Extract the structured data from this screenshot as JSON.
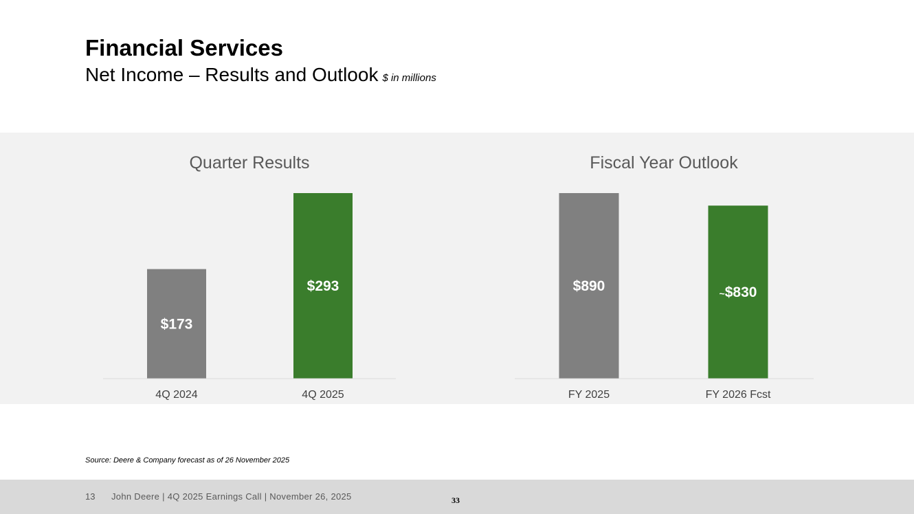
{
  "header": {
    "title": "Financial Services",
    "subtitle": "Net Income – Results and Outlook",
    "units": "$ in millions"
  },
  "colors": {
    "prior": "#808080",
    "current": "#3a7d2c",
    "panel": "#f2f2f2"
  },
  "chart_data": [
    {
      "type": "bar",
      "title": "Quarter Results",
      "categories": [
        "4Q 2024",
        "4Q 2025"
      ],
      "values": [
        173,
        293
      ],
      "labels": [
        {
          "prefix": "",
          "text": "$173"
        },
        {
          "prefix": "",
          "text": "$293"
        }
      ],
      "ylim": [
        0,
        293
      ],
      "xlabel": "",
      "ylabel": "",
      "grid": false
    },
    {
      "type": "bar",
      "title": "Fiscal Year Outlook",
      "categories": [
        "FY 2025",
        "FY 2026 Fcst"
      ],
      "values": [
        890,
        830
      ],
      "labels": [
        {
          "prefix": "",
          "text": "$890"
        },
        {
          "prefix": "~",
          "text": "$830"
        }
      ],
      "ylim": [
        0,
        890
      ],
      "xlabel": "",
      "ylabel": "",
      "grid": false
    }
  ],
  "source": "Source: Deere & Company forecast as of 26 November 2025",
  "footer": {
    "page_number": "13",
    "text": "John Deere | 4Q 2025 Earnings Call | November 26, 2025",
    "slide_number": "33"
  }
}
